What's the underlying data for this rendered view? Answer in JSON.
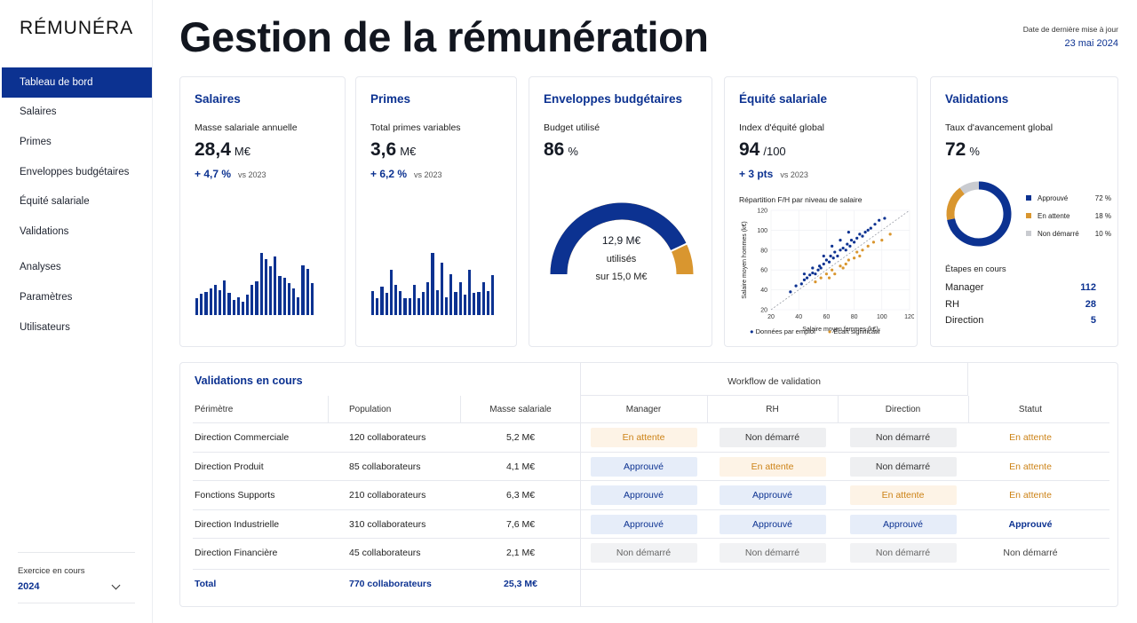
{
  "app": {
    "logo": "RÉMUNÉRA"
  },
  "sidebar": {
    "items": [
      {
        "label": "Tableau de bord",
        "active": true
      },
      {
        "label": "Salaires"
      },
      {
        "label": "Primes"
      },
      {
        "label": "Enveloppes budgétaires"
      },
      {
        "label": "Équité salariale"
      },
      {
        "label": "Validations"
      },
      {
        "label": "Analyses"
      },
      {
        "label": "Paramètres"
      },
      {
        "label": "Utilisateurs"
      }
    ],
    "exercise_label": "Exercice en cours",
    "exercise_value": "2024"
  },
  "header": {
    "title": "Gestion de la rémunération",
    "update_label": "Date de dernière mise à jour",
    "update_date": "23 mai 2024"
  },
  "cards": {
    "salaires": {
      "title": "Salaires",
      "metric_label": "Masse salariale annuelle",
      "value": "28,4",
      "unit": "M€",
      "delta": "+ 4,7 %",
      "vs": "vs 2023",
      "bars": [
        26,
        33,
        36,
        41,
        47,
        39,
        53,
        34,
        24,
        27,
        21,
        32,
        46,
        52,
        96,
        86,
        76,
        91,
        61,
        57,
        50,
        41,
        27,
        77,
        72,
        50
      ]
    },
    "primes": {
      "title": "Primes",
      "metric_label": "Total primes variables",
      "value": "3,6",
      "unit": "M€",
      "delta": "+ 6,2 %",
      "vs": "vs 2023",
      "bars": [
        33,
        23,
        39,
        31,
        63,
        42,
        33,
        23,
        23,
        42,
        23,
        32,
        45,
        86,
        34,
        73,
        24,
        56,
        32,
        46,
        28,
        63,
        31,
        32,
        45,
        33,
        55
      ]
    },
    "budget": {
      "title": "Enveloppes budgétaires",
      "metric_label": "Budget utilisé",
      "value": "86",
      "unit": "%",
      "used": "12,9 M€",
      "used_word": "utilisés",
      "total": "sur 15,0 M€",
      "progress": 0.86
    },
    "equite": {
      "title": "Équité salariale",
      "metric_label": "Index d'équité global",
      "value": "94",
      "unit": "/100",
      "delta": "+ 3 pts",
      "vs": "vs 2023",
      "chart_title": "Répartition F/H par niveau de salaire",
      "legend_a": "Données par emploi",
      "legend_b": "Écart significatif"
    },
    "validations": {
      "title": "Validations",
      "metric_label": "Taux d'avancement global",
      "value": "72",
      "unit": "%",
      "legend": [
        {
          "label": "Approuvé",
          "pct": "72 %",
          "color": "#0c3291"
        },
        {
          "label": "En attente",
          "pct": "18 %",
          "color": "#d9962f"
        },
        {
          "label": "Non démarré",
          "pct": "10 %",
          "color": "#c9cbd0"
        }
      ],
      "steps_title": "Étapes en cours",
      "steps": [
        {
          "label": "Manager",
          "value": "112"
        },
        {
          "label": "RH",
          "value": "28"
        },
        {
          "label": "Direction",
          "value": "5"
        }
      ]
    }
  },
  "chart_data": {
    "type": "scatter",
    "title": "Répartition F/H par niveau de salaire",
    "xlabel": "Salaire moyen femmes (k€)",
    "ylabel": "Salaire moyen hommes (k€)",
    "xlim": [
      20,
      120
    ],
    "ylim": [
      20,
      120
    ],
    "x_ticks": [
      "20",
      "40",
      "60",
      "80",
      "100",
      "120"
    ],
    "y_ticks": [
      "20",
      "40",
      "60",
      "80",
      "100",
      "120"
    ],
    "series": [
      {
        "name": "Données par emploi",
        "color": "#0c3291",
        "points": [
          [
            34,
            38
          ],
          [
            38,
            44
          ],
          [
            42,
            46
          ],
          [
            44,
            50
          ],
          [
            46,
            52
          ],
          [
            48,
            55
          ],
          [
            50,
            57
          ],
          [
            52,
            56
          ],
          [
            54,
            60
          ],
          [
            55,
            64
          ],
          [
            56,
            62
          ],
          [
            58,
            66
          ],
          [
            60,
            70
          ],
          [
            62,
            68
          ],
          [
            63,
            74
          ],
          [
            65,
            72
          ],
          [
            66,
            78
          ],
          [
            68,
            74
          ],
          [
            70,
            80
          ],
          [
            72,
            82
          ],
          [
            74,
            80
          ],
          [
            75,
            86
          ],
          [
            77,
            84
          ],
          [
            78,
            90
          ],
          [
            80,
            88
          ],
          [
            82,
            92
          ],
          [
            84,
            96
          ],
          [
            86,
            94
          ],
          [
            88,
            98
          ],
          [
            90,
            100
          ],
          [
            92,
            102
          ],
          [
            95,
            106
          ],
          [
            98,
            110
          ],
          [
            102,
            112
          ],
          [
            58,
            74
          ],
          [
            64,
            84
          ],
          [
            70,
            90
          ],
          [
            76,
            98
          ],
          [
            50,
            62
          ],
          [
            44,
            56
          ]
        ]
      },
      {
        "name": "Écart significatif",
        "color": "#d9962f",
        "points": [
          [
            52,
            48
          ],
          [
            56,
            52
          ],
          [
            60,
            56
          ],
          [
            64,
            60
          ],
          [
            66,
            56
          ],
          [
            70,
            64
          ],
          [
            72,
            62
          ],
          [
            76,
            70
          ],
          [
            80,
            72
          ],
          [
            82,
            78
          ],
          [
            86,
            80
          ],
          [
            90,
            84
          ],
          [
            94,
            88
          ],
          [
            100,
            90
          ],
          [
            106,
            96
          ],
          [
            62,
            52
          ],
          [
            74,
            66
          ],
          [
            84,
            74
          ]
        ]
      }
    ]
  },
  "table": {
    "title": "Validations en cours",
    "workflow_title": "Workflow de validation",
    "headers": {
      "perimetre": "Périmètre",
      "population": "Population",
      "masse": "Masse salariale",
      "manager": "Manager",
      "rh": "RH",
      "direction": "Direction",
      "statut": "Statut"
    },
    "rows": [
      {
        "perimetre": "Direction Commerciale",
        "population": "120 collaborateurs",
        "masse": "5,2 M€",
        "manager": "En attente",
        "rh": "Non démarré",
        "direction": "Non démarré",
        "statut": "En attente"
      },
      {
        "perimetre": "Direction Produit",
        "population": "85 collaborateurs",
        "masse": "4,1 M€",
        "manager": "Approuvé",
        "rh": "En attente",
        "direction": "Non démarré",
        "statut": "En attente"
      },
      {
        "perimetre": "Fonctions Supports",
        "population": "210 collaborateurs",
        "masse": "6,3 M€",
        "manager": "Approuvé",
        "rh": "Approuvé",
        "direction": "En attente",
        "statut": "En attente"
      },
      {
        "perimetre": "Direction Industrielle",
        "population": "310 collaborateurs",
        "masse": "7,6 M€",
        "manager": "Approuvé",
        "rh": "Approuvé",
        "direction": "Approuvé",
        "statut": "Approuvé"
      },
      {
        "perimetre": "Direction Financière",
        "population": "45 collaborateurs",
        "masse": "2,1 M€",
        "manager": "Non démarré",
        "rh": "Non démarré",
        "direction": "Non démarré",
        "statut": "Non démarré"
      }
    ],
    "total": {
      "label": "Total",
      "population": "770 collaborateurs",
      "masse": "25,3 M€"
    }
  }
}
